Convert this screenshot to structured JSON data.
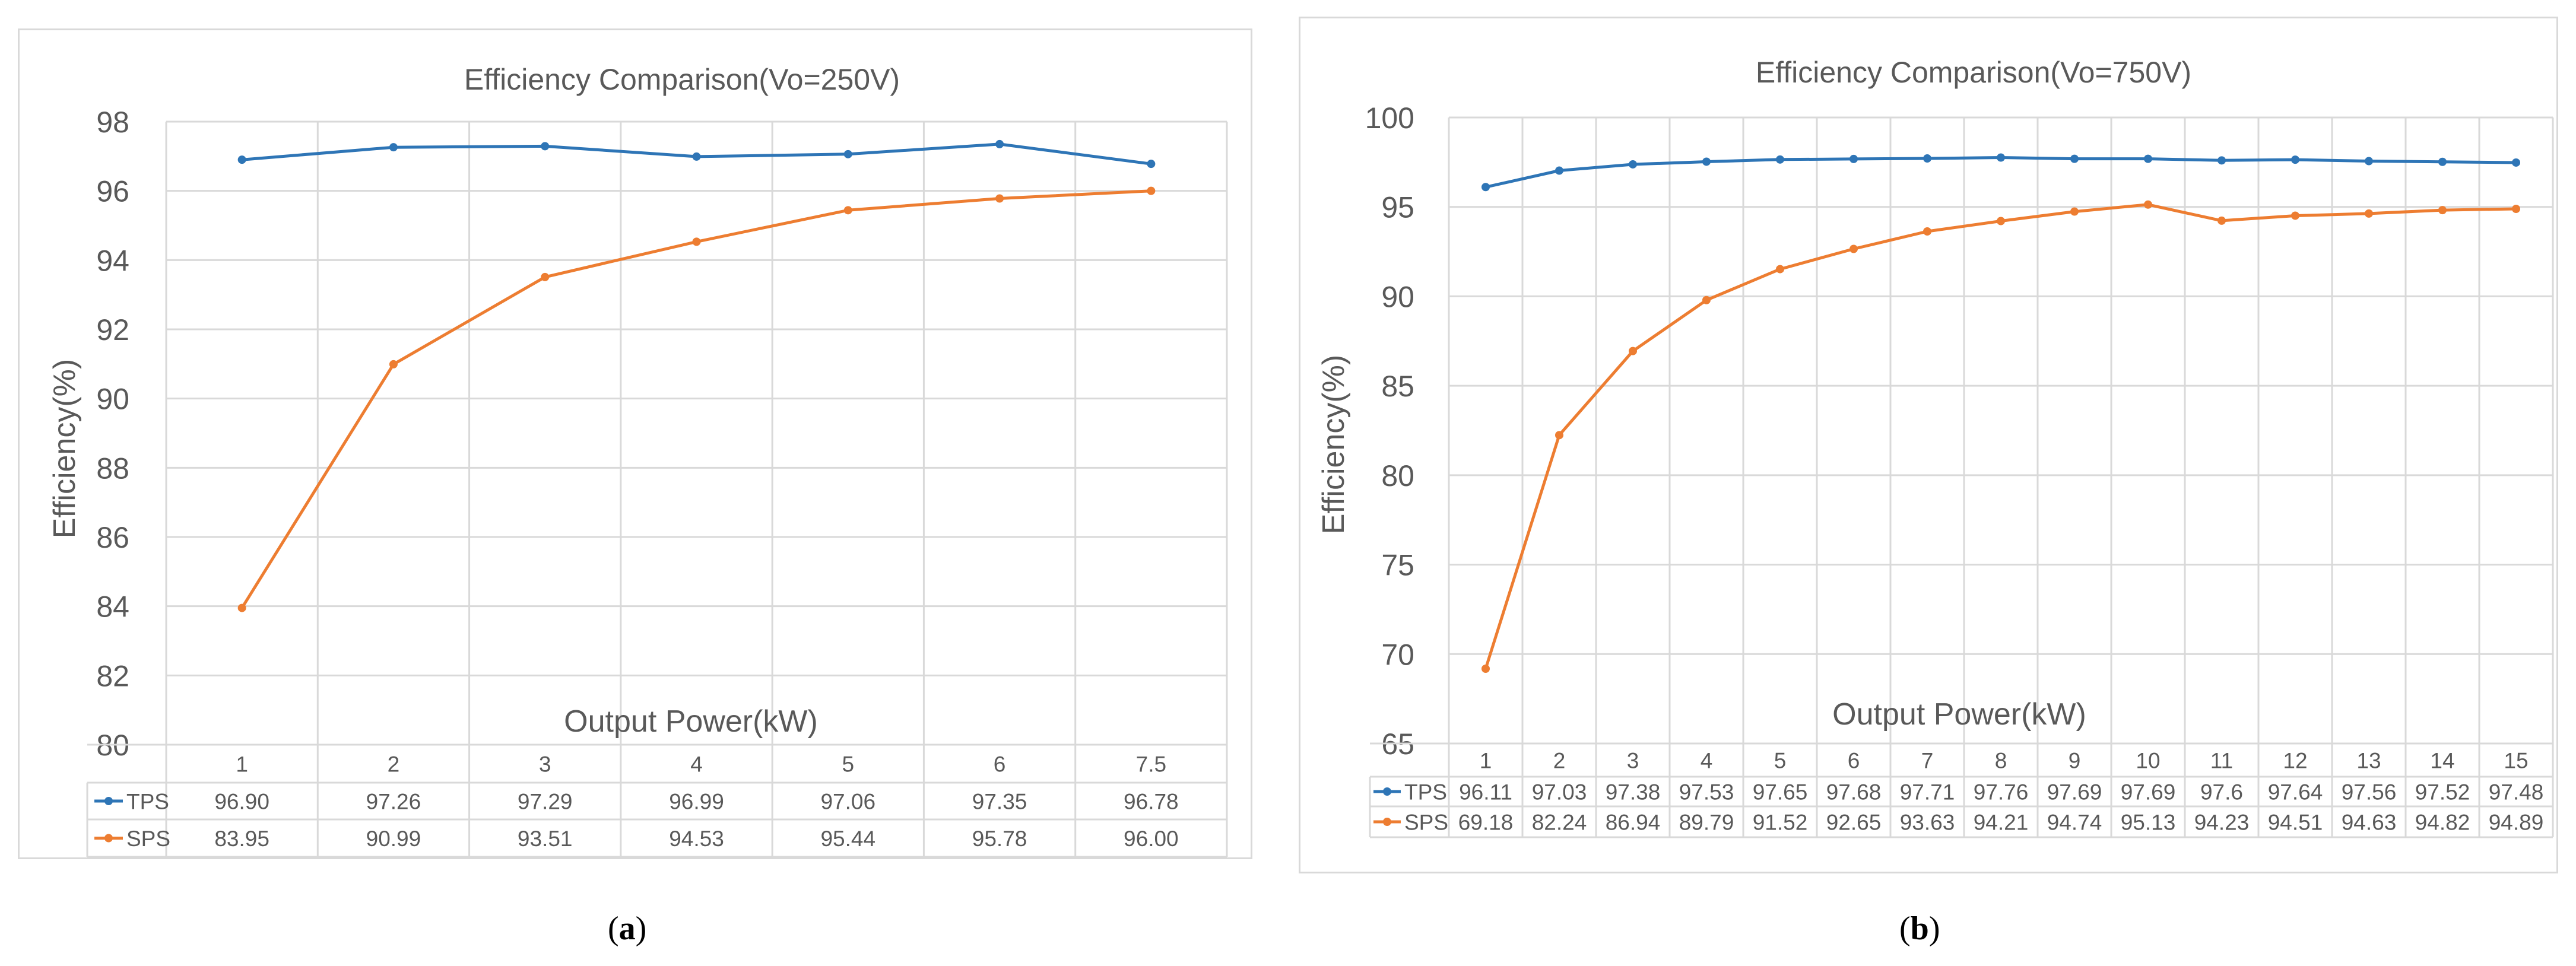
{
  "captions": {
    "a_open": "(",
    "a_letter": "a",
    "a_close": ")",
    "b_open": "(",
    "b_letter": "b",
    "b_close": ")"
  },
  "colors": {
    "tps": "#2E75B6",
    "sps": "#ED7D31",
    "grid": "#d9d9d9",
    "text": "#595959"
  },
  "chart_data": [
    {
      "type": "line",
      "title": "Efficiency Comparison(Vo=250V)",
      "xlabel": "Output Power(kW)",
      "ylabel": "Efficiency(%)",
      "categories": [
        "1",
        "2",
        "3",
        "4",
        "5",
        "6",
        "7.5"
      ],
      "ylim": [
        80,
        98
      ],
      "yticks": [
        80,
        82,
        84,
        86,
        88,
        90,
        92,
        94,
        96,
        98
      ],
      "grid": true,
      "data_table": true,
      "series": [
        {
          "name": "TPS",
          "values": [
            96.9,
            97.26,
            97.29,
            96.99,
            97.06,
            97.35,
            96.78
          ],
          "labels": [
            "96.90",
            "97.26",
            "97.29",
            "96.99",
            "97.06",
            "97.35",
            "96.78"
          ]
        },
        {
          "name": "SPS",
          "values": [
            83.95,
            90.99,
            93.51,
            94.53,
            95.44,
            95.78,
            96.0
          ],
          "labels": [
            "83.95",
            "90.99",
            "93.51",
            "94.53",
            "95.44",
            "95.78",
            "96.00"
          ]
        }
      ]
    },
    {
      "type": "line",
      "title": "Efficiency Comparison(Vo=750V)",
      "xlabel": "Output Power(kW)",
      "ylabel": "Efficiency(%)",
      "categories": [
        "1",
        "2",
        "3",
        "4",
        "5",
        "6",
        "7",
        "8",
        "9",
        "10",
        "11",
        "12",
        "13",
        "14",
        "15"
      ],
      "ylim": [
        65,
        100
      ],
      "yticks": [
        65,
        70,
        75,
        80,
        85,
        90,
        95,
        100
      ],
      "grid": true,
      "data_table": true,
      "series": [
        {
          "name": "TPS",
          "values": [
            96.11,
            97.03,
            97.38,
            97.53,
            97.65,
            97.68,
            97.71,
            97.76,
            97.69,
            97.69,
            97.6,
            97.64,
            97.56,
            97.52,
            97.48
          ],
          "labels": [
            "96.11",
            "97.03",
            "97.38",
            "97.53",
            "97.65",
            "97.68",
            "97.71",
            "97.76",
            "97.69",
            "97.69",
            "97.6",
            "97.64",
            "97.56",
            "97.52",
            "97.48"
          ]
        },
        {
          "name": "SPS",
          "values": [
            69.18,
            82.24,
            86.94,
            89.79,
            91.52,
            92.65,
            93.63,
            94.21,
            94.74,
            95.13,
            94.23,
            94.51,
            94.63,
            94.82,
            94.89
          ],
          "labels": [
            "69.18",
            "82.24",
            "86.94",
            "89.79",
            "91.52",
            "92.65",
            "93.63",
            "94.21",
            "94.74",
            "95.13",
            "94.23",
            "94.51",
            "94.63",
            "94.82",
            "94.89"
          ]
        }
      ]
    }
  ]
}
